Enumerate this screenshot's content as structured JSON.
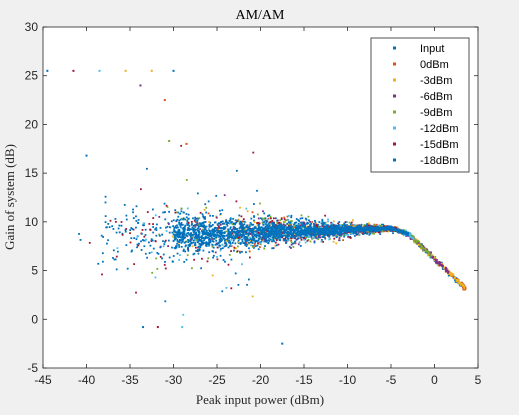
{
  "chart_data": {
    "type": "scatter",
    "title": "AM/AM",
    "xlabel": "Peak input power (dBm)",
    "ylabel": "Gain of system (dB)",
    "xlim": [
      -45,
      5
    ],
    "ylim": [
      -5,
      30
    ],
    "xticks": [
      "-45",
      "-40",
      "-35",
      "-30",
      "-25",
      "-20",
      "-15",
      "-10",
      "-5",
      "0",
      "5"
    ],
    "yticks": [
      "-5",
      "0",
      "5",
      "10",
      "15",
      "20",
      "25",
      "30"
    ],
    "grid": false,
    "legend_position": "top-right",
    "series": [
      {
        "name": "Input",
        "color": "#0072bd"
      },
      {
        "name": "0dBm",
        "color": "#d95319"
      },
      {
        "name": "-3dBm",
        "color": "#edb120"
      },
      {
        "name": "-6dBm",
        "color": "#7e2f8e"
      },
      {
        "name": "-9dBm",
        "color": "#77ac30"
      },
      {
        "name": "-12dBm",
        "color": "#4dbeee"
      },
      {
        "name": "-15dBm",
        "color": "#a2142f"
      },
      {
        "name": "-18dBm",
        "color": "#0072bd"
      }
    ],
    "outlier_points": [
      {
        "x": -44.5,
        "y": 25.5,
        "series": 0
      },
      {
        "x": -41.5,
        "y": 25.5,
        "series": 6
      },
      {
        "x": -38.5,
        "y": 25.5,
        "series": 5
      },
      {
        "x": -35.5,
        "y": 25.5,
        "series": 2
      },
      {
        "x": -33.8,
        "y": 24.0,
        "series": 3
      },
      {
        "x": -32.5,
        "y": 25.5,
        "series": 2
      },
      {
        "x": -30.0,
        "y": 25.5,
        "series": 0
      },
      {
        "x": -31.0,
        "y": 22.5,
        "series": 1
      },
      {
        "x": -30.5,
        "y": 18.3,
        "series": 4
      },
      {
        "x": -28.5,
        "y": 18.0,
        "series": 1
      },
      {
        "x": -40.0,
        "y": 16.8,
        "series": 0
      },
      {
        "x": -33.5,
        "y": -0.8,
        "series": 0
      },
      {
        "x": -31.8,
        "y": -0.8,
        "series": 6
      },
      {
        "x": -29.0,
        "y": -0.8,
        "series": 5
      },
      {
        "x": -17.5,
        "y": -2.5,
        "series": 0
      }
    ]
  }
}
